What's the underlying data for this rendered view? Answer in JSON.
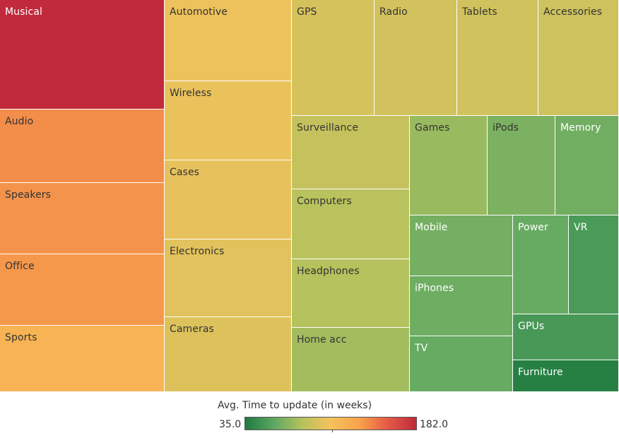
{
  "chart_data": {
    "type": "treemap",
    "measure": "Avg. Time to update (in weeks)",
    "color_range": [
      35.0,
      182.0
    ],
    "color_palette": [
      "#1e7a3f",
      "#5ea863",
      "#b5c25d",
      "#f6c25c",
      "#f8a14c",
      "#e65b46",
      "#c02a3c"
    ],
    "items": [
      {
        "label": "Musical",
        "color_value": 182
      },
      {
        "label": "Audio",
        "color_value": 140
      },
      {
        "label": "Speakers",
        "color_value": 138
      },
      {
        "label": "Office",
        "color_value": 136
      },
      {
        "label": "Sports",
        "color_value": 120
      },
      {
        "label": "Automotive",
        "color_value": 105
      },
      {
        "label": "Wireless",
        "color_value": 104
      },
      {
        "label": "Cases",
        "color_value": 103
      },
      {
        "label": "Electronics",
        "color_value": 101
      },
      {
        "label": "Cameras",
        "color_value": 99
      },
      {
        "label": "GPS",
        "color_value": 96
      },
      {
        "label": "Radio",
        "color_value": 95
      },
      {
        "label": "Tablets",
        "color_value": 94
      },
      {
        "label": "Accessories",
        "color_value": 93
      },
      {
        "label": "Surveillance",
        "color_value": 90
      },
      {
        "label": "Computers",
        "color_value": 86
      },
      {
        "label": "Headphones",
        "color_value": 84
      },
      {
        "label": "Home acc",
        "color_value": 79
      },
      {
        "label": "Games",
        "color_value": 76
      },
      {
        "label": "iPods",
        "color_value": 68
      },
      {
        "label": "Memory",
        "color_value": 65
      },
      {
        "label": "Mobile",
        "color_value": 66
      },
      {
        "label": "iPhones",
        "color_value": 64
      },
      {
        "label": "TV",
        "color_value": 62
      },
      {
        "label": "Power",
        "color_value": 62
      },
      {
        "label": "VR",
        "color_value": 52
      },
      {
        "label": "GPUs",
        "color_value": 51
      },
      {
        "label": "Furniture",
        "color_value": 38
      }
    ],
    "legend": {
      "title": "Avg. Time to update (in weeks)",
      "min_label": "35.0",
      "max_label": "182.0",
      "marker_value": 110
    }
  }
}
